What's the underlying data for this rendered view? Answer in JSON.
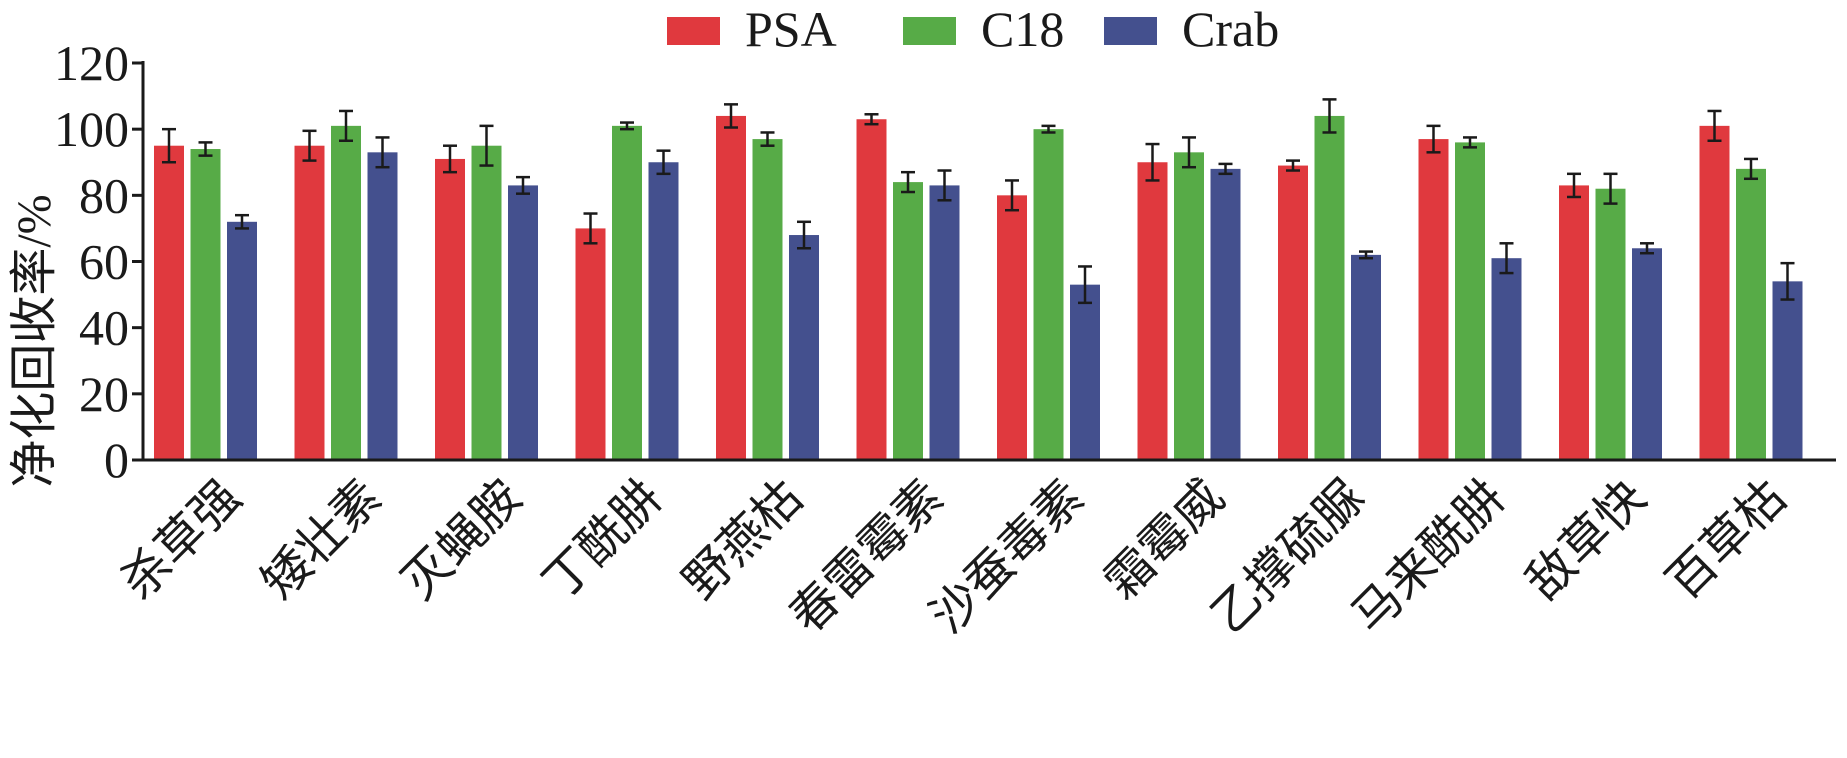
{
  "chart_data": {
    "type": "bar",
    "title": "",
    "xlabel": "",
    "ylabel": "净化回收率/%",
    "ylim": [
      0,
      120
    ],
    "yticks": [
      "0",
      "20",
      "40",
      "60",
      "80",
      "100",
      "120"
    ],
    "grid": false,
    "legend_position": "top-center",
    "categories": [
      "杀草强",
      "矮壮素",
      "灭蝇胺",
      "丁酰肼",
      "野燕枯",
      "春雷霉素",
      "沙蚕毒素",
      "霜霉威",
      "乙撑硫脲",
      "马来酰肼",
      "敌草快",
      "百草枯"
    ],
    "series": [
      {
        "name": "PSA",
        "color": "#e0393e",
        "values": [
          95,
          95,
          91,
          70,
          104,
          103,
          80,
          90,
          89,
          97,
          83,
          101
        ],
        "errors": [
          5,
          4.5,
          4,
          4.5,
          3.5,
          1.5,
          4.5,
          5.5,
          1.5,
          4,
          3.5,
          4.5
        ]
      },
      {
        "name": "C18",
        "color": "#57ab47",
        "values": [
          94,
          101,
          95,
          101,
          97,
          84,
          100,
          93,
          104,
          96,
          82,
          88
        ],
        "errors": [
          2,
          4.5,
          6,
          1,
          2,
          3,
          1,
          4.5,
          5,
          1.5,
          4.5,
          3
        ]
      },
      {
        "name": "Crab",
        "color": "#44508e",
        "values": [
          72,
          93,
          83,
          90,
          68,
          83,
          53,
          88,
          62,
          61,
          64,
          54
        ],
        "errors": [
          2,
          4.5,
          2.5,
          3.5,
          4,
          4.5,
          5.5,
          1.5,
          1,
          4.5,
          1.5,
          5.5
        ]
      }
    ]
  }
}
